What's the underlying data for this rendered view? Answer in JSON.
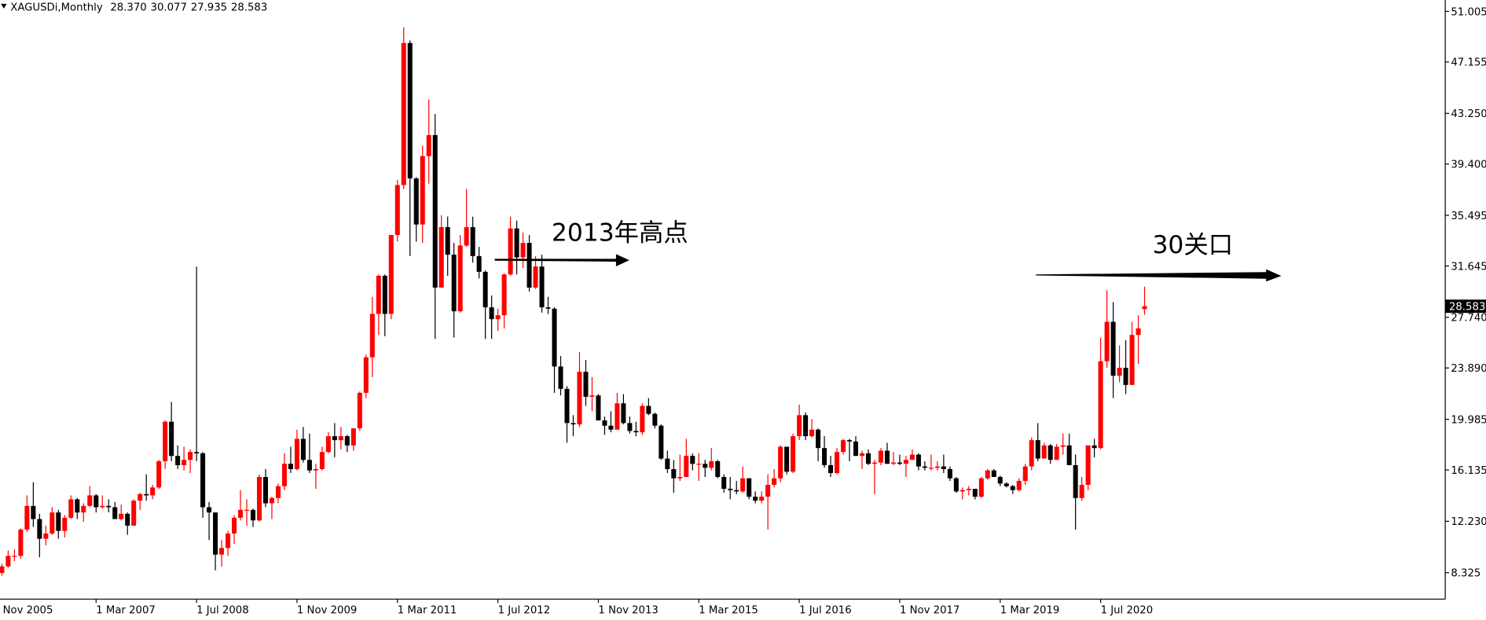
{
  "chart_data": {
    "type": "candlestick",
    "title": "XAGUSDi,Monthly",
    "last_labels": [
      "28.370",
      "30.077",
      "27.935",
      "28.583"
    ],
    "annotations": [
      "2013年高点",
      "30关口"
    ],
    "up_color": "#ff0000",
    "down_color": "#000000",
    "ylim": [
      6.31,
      51.87
    ],
    "yticks": [
      8.325,
      {
        "value": 12.23,
        "label": "12.230"
      },
      16.135,
      19.985,
      {
        "value": 23.89,
        "label": "23.890"
      },
      {
        "value": 27.74,
        "label": "27.740"
      },
      31.645,
      35.495,
      {
        "value": 39.4,
        "label": "39.400"
      },
      {
        "value": 43.25,
        "label": "43.250"
      },
      47.155,
      51.005
    ],
    "xticks": [
      {
        "value": -1,
        "label": "Nov 2005"
      },
      {
        "value": 15,
        "label": "1 Mar 2007"
      },
      {
        "value": 31,
        "label": "1 Jul 2008"
      },
      {
        "value": 47,
        "label": "1 Nov 2009"
      },
      {
        "value": 63,
        "label": "1 Mar 2011"
      },
      {
        "value": 79,
        "label": "1 Jul 2012"
      },
      {
        "value": 95,
        "label": "1 Nov 2013"
      },
      {
        "value": 111,
        "label": "1 Mar 2015"
      },
      {
        "value": 127,
        "label": "1 Jul 2016"
      },
      {
        "value": 143,
        "label": "1 Nov 2017"
      },
      {
        "value": 159,
        "label": "1 Mar 2019"
      },
      {
        "value": 175,
        "label": "1 Jul 2020"
      }
    ],
    "candles": [
      [
        8.3,
        9.0,
        8.1,
        8.8
      ],
      [
        8.8,
        10.0,
        8.7,
        9.6
      ],
      [
        9.6,
        10.1,
        9.2,
        9.6
      ],
      [
        9.6,
        11.7,
        9.4,
        11.6
      ],
      [
        11.6,
        14.2,
        11.4,
        13.4
      ],
      [
        13.4,
        15.2,
        11.8,
        12.4
      ],
      [
        12.4,
        12.8,
        9.5,
        10.9
      ],
      [
        10.9,
        11.9,
        10.4,
        11.3
      ],
      [
        11.3,
        13.3,
        11.2,
        12.9
      ],
      [
        12.9,
        13.1,
        10.9,
        11.5
      ],
      [
        11.5,
        12.7,
        11.0,
        12.5
      ],
      [
        12.5,
        14.2,
        12.4,
        13.9
      ],
      [
        13.9,
        14.0,
        12.4,
        12.9
      ],
      [
        12.9,
        13.6,
        12.2,
        13.4
      ],
      [
        13.4,
        14.9,
        13.3,
        14.2
      ],
      [
        14.2,
        14.3,
        12.9,
        13.3
      ],
      [
        13.3,
        14.2,
        13.2,
        13.4
      ],
      [
        13.4,
        13.9,
        12.9,
        13.3
      ],
      [
        13.3,
        13.7,
        12.4,
        12.4
      ],
      [
        12.4,
        13.5,
        12.3,
        12.8
      ],
      [
        12.8,
        12.9,
        11.2,
        11.9
      ],
      [
        11.9,
        13.9,
        11.9,
        13.8
      ],
      [
        13.8,
        14.4,
        13.1,
        14.3
      ],
      [
        14.3,
        15.8,
        13.8,
        14.2
      ],
      [
        14.2,
        15.0,
        13.9,
        14.8
      ],
      [
        14.8,
        16.9,
        14.7,
        16.8
      ],
      [
        16.8,
        19.9,
        16.2,
        19.8
      ],
      [
        19.8,
        21.3,
        16.8,
        17.2
      ],
      [
        17.2,
        18.0,
        16.2,
        16.5
      ],
      [
        16.5,
        17.9,
        16.1,
        16.9
      ],
      [
        16.9,
        17.7,
        15.9,
        17.5
      ],
      [
        17.5,
        31.6,
        16.8,
        17.4
      ],
      [
        17.4,
        17.5,
        12.5,
        13.3
      ],
      [
        13.3,
        13.7,
        10.8,
        12.9
      ],
      [
        12.9,
        12.9,
        8.5,
        9.7
      ],
      [
        9.7,
        10.8,
        8.8,
        10.2
      ],
      [
        10.2,
        11.5,
        9.6,
        11.3
      ],
      [
        11.3,
        12.7,
        10.5,
        12.5
      ],
      [
        12.5,
        14.6,
        12.3,
        13.1
      ],
      [
        13.1,
        13.9,
        11.9,
        13.1
      ],
      [
        13.1,
        13.2,
        11.8,
        12.3
      ],
      [
        12.3,
        15.8,
        12.2,
        15.6
      ],
      [
        15.6,
        16.2,
        13.3,
        13.6
      ],
      [
        13.6,
        14.1,
        12.4,
        14.0
      ],
      [
        14.0,
        15.1,
        13.6,
        14.9
      ],
      [
        14.9,
        17.4,
        14.6,
        16.6
      ],
      [
        16.6,
        17.9,
        15.9,
        16.2
      ],
      [
        16.2,
        19.2,
        16.1,
        18.5
      ],
      [
        18.5,
        19.4,
        16.7,
        16.9
      ],
      [
        16.9,
        18.9,
        15.9,
        16.1
      ],
      [
        16.1,
        16.6,
        14.7,
        16.2
      ],
      [
        16.2,
        17.9,
        16.1,
        17.5
      ],
      [
        17.5,
        19.0,
        17.4,
        18.7
      ],
      [
        18.7,
        19.7,
        17.1,
        18.4
      ],
      [
        18.4,
        19.4,
        17.7,
        18.7
      ],
      [
        18.7,
        18.8,
        17.5,
        18.0
      ],
      [
        18.0,
        19.3,
        17.6,
        19.3
      ],
      [
        19.3,
        22.1,
        19.1,
        22.0
      ],
      [
        22.0,
        24.9,
        21.6,
        24.7
      ],
      [
        24.7,
        29.3,
        23.2,
        28.0
      ],
      [
        28.0,
        31.0,
        26.4,
        30.9
      ],
      [
        30.9,
        31.0,
        26.3,
        28.0
      ],
      [
        28.0,
        34.0,
        27.6,
        34.0
      ],
      [
        34.0,
        38.2,
        33.5,
        37.8
      ],
      [
        37.8,
        49.8,
        37.5,
        48.6
      ],
      [
        48.6,
        48.8,
        32.4,
        38.3
      ],
      [
        38.3,
        38.4,
        33.5,
        34.8
      ],
      [
        34.8,
        40.8,
        33.4,
        40.0
      ],
      [
        40.0,
        44.3,
        37.9,
        41.6
      ],
      [
        41.6,
        43.2,
        26.1,
        30.0
      ],
      [
        30.0,
        35.5,
        30.0,
        34.6
      ],
      [
        34.6,
        35.4,
        30.9,
        32.5
      ],
      [
        32.5,
        33.4,
        26.2,
        28.2
      ],
      [
        28.2,
        34.0,
        28.1,
        33.2
      ],
      [
        33.2,
        37.5,
        33.1,
        34.6
      ],
      [
        34.6,
        35.4,
        31.9,
        32.4
      ],
      [
        32.4,
        33.1,
        30.7,
        31.2
      ],
      [
        31.2,
        31.3,
        26.1,
        28.5
      ],
      [
        28.5,
        29.4,
        26.1,
        27.6
      ],
      [
        27.6,
        28.4,
        26.7,
        27.9
      ],
      [
        27.9,
        31.1,
        26.9,
        31.0
      ],
      [
        31.0,
        35.4,
        30.9,
        34.5
      ],
      [
        34.5,
        35.1,
        31.0,
        32.3
      ],
      [
        32.3,
        34.2,
        31.5,
        33.4
      ],
      [
        33.4,
        34.0,
        29.7,
        30.0
      ],
      [
        30.0,
        32.4,
        29.9,
        31.6
      ],
      [
        31.6,
        32.5,
        28.1,
        28.5
      ],
      [
        28.5,
        29.3,
        28.0,
        28.4
      ],
      [
        28.4,
        28.5,
        22.0,
        24.0
      ],
      [
        24.0,
        24.8,
        21.8,
        22.3
      ],
      [
        22.3,
        22.5,
        18.2,
        19.7
      ],
      [
        19.7,
        20.3,
        18.7,
        19.6
      ],
      [
        19.6,
        25.1,
        19.4,
        23.6
      ],
      [
        23.6,
        24.5,
        21.0,
        21.7
      ],
      [
        21.7,
        23.2,
        20.6,
        21.8
      ],
      [
        21.8,
        21.9,
        19.9,
        19.9
      ],
      [
        19.9,
        20.2,
        18.8,
        19.5
      ],
      [
        19.5,
        20.6,
        19.0,
        19.2
      ],
      [
        19.2,
        22.0,
        19.2,
        21.2
      ],
      [
        21.2,
        21.9,
        19.6,
        19.7
      ],
      [
        19.7,
        20.2,
        18.9,
        19.1
      ],
      [
        19.1,
        19.8,
        18.7,
        19.0
      ],
      [
        19.0,
        21.2,
        18.8,
        21.0
      ],
      [
        21.0,
        21.6,
        20.3,
        20.4
      ],
      [
        20.4,
        20.5,
        19.3,
        19.5
      ],
      [
        19.5,
        19.6,
        16.9,
        17.0
      ],
      [
        17.0,
        17.6,
        15.9,
        16.2
      ],
      [
        16.2,
        16.9,
        14.4,
        15.5
      ],
      [
        15.5,
        17.3,
        15.3,
        15.6
      ],
      [
        15.6,
        18.5,
        15.6,
        17.2
      ],
      [
        17.2,
        17.4,
        16.1,
        16.6
      ],
      [
        16.6,
        17.4,
        15.3,
        16.6
      ],
      [
        16.6,
        16.9,
        15.6,
        16.3
      ],
      [
        16.3,
        17.8,
        16.1,
        16.8
      ],
      [
        16.8,
        16.9,
        15.5,
        15.6
      ],
      [
        15.6,
        15.8,
        14.4,
        14.7
      ],
      [
        14.7,
        15.6,
        13.9,
        14.6
      ],
      [
        14.6,
        15.3,
        14.3,
        14.5
      ],
      [
        14.5,
        16.4,
        14.4,
        15.5
      ],
      [
        15.5,
        15.5,
        13.9,
        14.1
      ],
      [
        14.1,
        14.5,
        13.6,
        13.8
      ],
      [
        13.8,
        14.5,
        13.6,
        14.1
      ],
      [
        14.1,
        15.8,
        11.6,
        15.0
      ],
      [
        15.0,
        16.2,
        14.8,
        15.5
      ],
      [
        15.5,
        18.0,
        15.2,
        17.9
      ],
      [
        17.9,
        17.9,
        15.8,
        16.0
      ],
      [
        16.0,
        18.9,
        15.9,
        18.7
      ],
      [
        18.7,
        21.1,
        18.4,
        20.3
      ],
      [
        20.3,
        20.5,
        18.4,
        18.7
      ],
      [
        18.7,
        20.0,
        18.6,
        19.2
      ],
      [
        19.2,
        19.3,
        16.8,
        17.8
      ],
      [
        17.8,
        18.7,
        16.3,
        16.5
      ],
      [
        16.5,
        17.2,
        15.6,
        15.9
      ],
      [
        15.9,
        17.8,
        15.8,
        17.5
      ],
      [
        17.5,
        18.5,
        17.3,
        18.4
      ],
      [
        18.4,
        18.5,
        16.8,
        18.3
      ],
      [
        18.3,
        18.7,
        17.2,
        17.2
      ],
      [
        17.2,
        17.6,
        16.2,
        17.4
      ],
      [
        17.4,
        17.7,
        16.5,
        16.6
      ],
      [
        16.6,
        16.9,
        14.3,
        16.7
      ],
      [
        16.7,
        17.8,
        16.5,
        17.6
      ],
      [
        17.6,
        18.2,
        16.6,
        16.6
      ],
      [
        16.6,
        17.5,
        16.5,
        16.7
      ],
      [
        16.7,
        17.3,
        16.5,
        16.6
      ],
      [
        16.6,
        17.2,
        15.6,
        16.9
      ],
      [
        16.9,
        17.7,
        16.9,
        17.3
      ],
      [
        17.3,
        17.4,
        16.1,
        16.4
      ],
      [
        16.4,
        16.8,
        16.1,
        16.3
      ],
      [
        16.3,
        17.3,
        16.1,
        16.3
      ],
      [
        16.3,
        16.8,
        16.1,
        16.4
      ],
      [
        16.4,
        17.3,
        15.9,
        16.2
      ],
      [
        16.2,
        16.4,
        15.3,
        15.5
      ],
      [
        15.5,
        15.6,
        14.4,
        14.5
      ],
      [
        14.5,
        14.8,
        13.9,
        14.6
      ],
      [
        14.6,
        14.9,
        14.2,
        14.7
      ],
      [
        14.7,
        14.7,
        13.9,
        14.1
      ],
      [
        14.1,
        15.6,
        14.0,
        15.5
      ],
      [
        15.5,
        16.2,
        15.4,
        16.1
      ],
      [
        16.1,
        16.2,
        15.6,
        15.6
      ],
      [
        15.6,
        15.7,
        14.9,
        15.1
      ],
      [
        15.1,
        15.2,
        14.8,
        14.9
      ],
      [
        14.9,
        15.0,
        14.3,
        14.6
      ],
      [
        14.6,
        15.5,
        14.5,
        15.3
      ],
      [
        15.3,
        16.6,
        15.0,
        16.4
      ],
      [
        16.4,
        18.6,
        16.1,
        18.4
      ],
      [
        18.4,
        19.7,
        16.8,
        17.0
      ],
      [
        17.0,
        18.2,
        17.0,
        18.0
      ],
      [
        18.0,
        18.1,
        16.6,
        16.9
      ],
      [
        16.9,
        18.1,
        16.9,
        17.9
      ],
      [
        17.9,
        18.9,
        17.3,
        18.0
      ],
      [
        18.0,
        18.9,
        16.5,
        16.5
      ],
      [
        16.5,
        17.3,
        11.6,
        14.0
      ],
      [
        14.0,
        15.6,
        13.8,
        15.0
      ],
      [
        15.0,
        18.0,
        14.6,
        18.0
      ],
      [
        18.0,
        18.5,
        17.1,
        17.8
      ],
      [
        17.8,
        26.2,
        17.7,
        24.4
      ],
      [
        24.4,
        29.8,
        23.9,
        27.4
      ],
      [
        27.4,
        28.9,
        21.6,
        23.3
      ],
      [
        23.3,
        25.6,
        22.8,
        23.9
      ],
      [
        23.9,
        26.0,
        21.9,
        22.6
      ],
      [
        22.6,
        27.4,
        22.6,
        26.4
      ],
      [
        26.4,
        27.9,
        24.2,
        26.9
      ],
      [
        28.37,
        30.077,
        27.935,
        28.583
      ]
    ]
  }
}
